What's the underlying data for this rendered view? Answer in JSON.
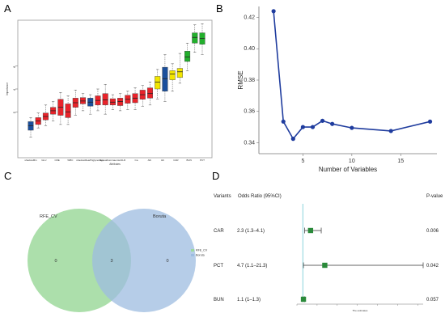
{
  "panels": {
    "a": {
      "letter": "A"
    },
    "b": {
      "letter": "B"
    },
    "c": {
      "letter": "C"
    },
    "d": {
      "letter": "D"
    }
  },
  "chart_data": [
    {
      "panel": "A",
      "type": "boxplot",
      "xlabel": "Attributes",
      "ylabel": "Importance",
      "ylim": [
        -2,
        10
      ],
      "yticks": [
        "2",
        "4",
        "6"
      ],
      "xtick_labels": [
        "shadowMin",
        "GLU",
        "CRE",
        "WBC",
        "shadowMean",
        "Triglycerides",
        "Hypoalbuminaemia",
        "NLR",
        "Ca",
        "Alb",
        "Hb",
        "CAR",
        "BUN",
        "PCT"
      ],
      "color_map": {
        "shadow": "#1a4f9c",
        "rejected": "#e8232a",
        "tentative": "#f2e600",
        "confirmed": "#22b02c"
      },
      "boxes": [
        {
          "status": "shadow",
          "q1": 0.4,
          "med": 0.8,
          "q3": 1.15,
          "min": -0.2,
          "max": 1.5
        },
        {
          "status": "rejected",
          "q1": 0.9,
          "med": 1.2,
          "q3": 1.5,
          "min": 0.6,
          "max": 1.9
        },
        {
          "status": "rejected",
          "q1": 1.3,
          "med": 1.6,
          "q3": 1.9,
          "min": 0.8,
          "max": 2.6
        },
        {
          "status": "rejected",
          "q1": 1.8,
          "med": 2.1,
          "q3": 2.4,
          "min": 1.2,
          "max": 2.9
        },
        {
          "status": "rejected",
          "q1": 1.7,
          "med": 2.4,
          "q3": 3.1,
          "min": 0.9,
          "max": 3.7
        },
        {
          "status": "rejected",
          "q1": 1.5,
          "med": 2.0,
          "q3": 2.7,
          "min": 0.9,
          "max": 3.4
        },
        {
          "status": "rejected",
          "q1": 2.4,
          "med": 2.8,
          "q3": 3.2,
          "min": 1.7,
          "max": 3.9
        },
        {
          "status": "rejected",
          "q1": 2.7,
          "med": 2.95,
          "q3": 3.25,
          "min": 2.1,
          "max": 3.6
        },
        {
          "status": "shadow",
          "q1": 2.5,
          "med": 2.85,
          "q3": 3.2,
          "min": 1.8,
          "max": 3.5
        },
        {
          "status": "rejected",
          "q1": 2.6,
          "med": 3.0,
          "q3": 3.4,
          "min": 2.1,
          "max": 4.0
        },
        {
          "status": "rejected",
          "q1": 2.6,
          "med": 3.05,
          "q3": 3.6,
          "min": 1.8,
          "max": 4.4
        },
        {
          "status": "rejected",
          "q1": 2.6,
          "med": 2.85,
          "q3": 3.15,
          "min": 2.2,
          "max": 3.5
        },
        {
          "status": "rejected",
          "q1": 2.55,
          "med": 2.9,
          "q3": 3.2,
          "min": 2.1,
          "max": 3.6
        },
        {
          "status": "rejected",
          "q1": 2.75,
          "med": 3.1,
          "q3": 3.45,
          "min": 2.2,
          "max": 3.8
        },
        {
          "status": "rejected",
          "q1": 2.8,
          "med": 3.2,
          "q3": 3.6,
          "min": 2.2,
          "max": 4.1
        },
        {
          "status": "rejected",
          "q1": 3.1,
          "med": 3.5,
          "q3": 3.9,
          "min": 2.5,
          "max": 4.3
        },
        {
          "status": "rejected",
          "q1": 3.2,
          "med": 3.6,
          "q3": 4.1,
          "min": 2.6,
          "max": 4.6
        },
        {
          "status": "tentative",
          "q1": 4.0,
          "med": 4.6,
          "q3": 5.1,
          "min": 3.1,
          "max": 5.7
        },
        {
          "status": "shadow",
          "q1": 3.8,
          "med": 4.9,
          "q3": 5.9,
          "min": 2.9,
          "max": 7.0
        },
        {
          "status": "tentative",
          "q1": 4.8,
          "med": 5.3,
          "q3": 5.6,
          "min": 3.8,
          "max": 6.2
        },
        {
          "status": "tentative",
          "q1": 5.0,
          "med": 5.5,
          "q3": 5.8,
          "min": 4.5,
          "max": 7.1
        },
        {
          "status": "confirmed",
          "q1": 6.4,
          "med": 6.8,
          "q3": 7.3,
          "min": 5.6,
          "max": 8.0
        },
        {
          "status": "confirmed",
          "q1": 8.0,
          "med": 8.5,
          "q3": 8.9,
          "min": 7.2,
          "max": 9.6
        },
        {
          "status": "confirmed",
          "q1": 7.9,
          "med": 8.4,
          "q3": 8.9,
          "min": 7.0,
          "max": 9.7
        }
      ]
    },
    {
      "panel": "B",
      "type": "line",
      "xlabel": "Number of Variables",
      "ylabel": "RMSE",
      "xlim": [
        0.5,
        18.7
      ],
      "ylim": [
        0.333,
        0.427
      ],
      "xticks": [
        5,
        10,
        15
      ],
      "yticks": [
        0.34,
        0.36,
        0.38,
        0.4,
        0.42
      ],
      "color": "#1f3c9e",
      "x": [
        2,
        3,
        4,
        5,
        6,
        7,
        8,
        10,
        14,
        18
      ],
      "y": [
        0.424,
        0.3535,
        0.3425,
        0.35,
        0.35,
        0.354,
        0.352,
        0.3495,
        0.3475,
        0.3535
      ]
    },
    {
      "panel": "C",
      "type": "venn",
      "sets": [
        {
          "name": "RFE_CV",
          "only": "0",
          "color": "#9dd99c"
        },
        {
          "name": "Boruta",
          "only": "0",
          "color": "#9dbce0"
        }
      ],
      "intersection": "3",
      "legend": [
        "RFE_CV",
        "Boruta"
      ],
      "legend_placement": "right"
    },
    {
      "panel": "D",
      "type": "forest",
      "header_left": "Variants",
      "header_middle": "Odds Ratio (95%CI)",
      "header_right": "P-value",
      "xlabel": "The estimates",
      "xlim": [
        0,
        21.3
      ],
      "color": "#2a8a3a",
      "rows": [
        {
          "variant": "CAR",
          "ci_text": "2.3 (1.3–4.1)",
          "or": 2.3,
          "low": 1.3,
          "high": 4.1,
          "p": "0.006"
        },
        {
          "variant": "PCT",
          "ci_text": "4.7 (1.1–21.3)",
          "or": 4.7,
          "low": 1.1,
          "high": 21.3,
          "p": "0.042"
        },
        {
          "variant": "BUN",
          "ci_text": "1.1 (1–1.3)",
          "or": 1.1,
          "low": 1.0,
          "high": 1.3,
          "p": "0.057"
        }
      ]
    }
  ]
}
